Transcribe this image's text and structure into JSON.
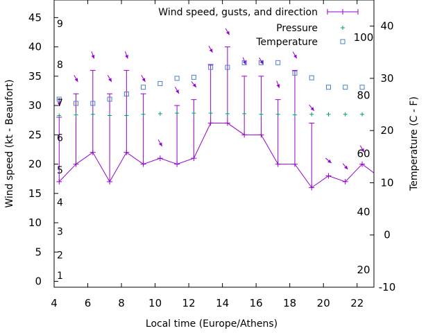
{
  "chart_data": {
    "type": "line",
    "title": "",
    "xlabel": "Local time (Europe/Athens)",
    "ylabel": "Wind speed (kt - Beaufort)",
    "y2label": "Temperature (C - F)",
    "xlim": [
      4,
      23
    ],
    "ylim": [
      -1,
      48
    ],
    "y2lim": [
      -10,
      45
    ],
    "x_ticks": [
      "4",
      "6",
      "8",
      "10",
      "12",
      "14",
      "16",
      "18",
      "20",
      "22"
    ],
    "y_ticks": [
      "0",
      "5",
      "10",
      "15",
      "20",
      "25",
      "30",
      "35",
      "40",
      "45"
    ],
    "y2_ticks": [
      "-10",
      "0",
      "10",
      "20",
      "30",
      "40"
    ],
    "beaufort_labels": [
      {
        "label": "1",
        "kt": 1
      },
      {
        "label": "2",
        "kt": 4.5
      },
      {
        "label": "3",
        "kt": 8.5
      },
      {
        "label": "4",
        "kt": 13.5
      },
      {
        "label": "5",
        "kt": 19
      },
      {
        "label": "6",
        "kt": 24.5
      },
      {
        "label": "7",
        "kt": 30.5
      },
      {
        "label": "8",
        "kt": 37
      },
      {
        "label": "9",
        "kt": 44
      }
    ],
    "fahrenheit_labels": [
      {
        "label": "20",
        "c": -6.7
      },
      {
        "label": "40",
        "c": 4.4
      },
      {
        "label": "60",
        "c": 15.6
      },
      {
        "label": "80",
        "c": 26.7
      },
      {
        "label": "100",
        "c": 37.8
      }
    ],
    "legend": {
      "position": "top-right",
      "entries": [
        "Wind speed, gusts, and direction",
        "Pressure",
        "Temperature"
      ]
    },
    "series": [
      {
        "name": "Wind speed, gusts, and direction",
        "color": "#9400d3",
        "x": [
          4.3,
          5.3,
          6.3,
          7.3,
          8.3,
          9.3,
          10.3,
          11.3,
          12.3,
          13.3,
          14.3,
          15.3,
          16.3,
          17.3,
          18.3,
          19.3,
          20.3,
          21.3,
          22.3,
          23.0
        ],
        "speed": [
          17,
          20,
          22,
          17,
          22,
          20,
          21,
          20,
          21,
          27,
          27,
          25,
          25,
          20,
          20,
          16,
          18,
          17,
          20,
          18.5
        ],
        "gust": [
          28,
          32,
          36,
          32,
          36,
          32,
          21,
          30,
          31,
          37,
          40,
          35,
          35,
          31,
          36,
          27,
          18,
          17,
          20,
          18.5
        ],
        "direction_deg": [
          0,
          330,
          340,
          330,
          340,
          330,
          330,
          330,
          320,
          330,
          330,
          340,
          330,
          340,
          330,
          320,
          310,
          320,
          330,
          330
        ]
      },
      {
        "name": "Pressure",
        "color": "#009e73",
        "x": [
          4.3,
          5.3,
          6.3,
          7.3,
          8.3,
          9.3,
          10.3,
          11.3,
          12.3,
          13.3,
          14.3,
          15.3,
          16.3,
          17.3,
          18.3,
          19.3,
          20.3,
          21.3,
          22.3
        ],
        "kt_level": [
          28.3,
          28.4,
          28.5,
          28.3,
          28.3,
          28.5,
          28.6,
          28.7,
          28.7,
          28.7,
          28.6,
          28.6,
          28.5,
          28.5,
          28.4,
          28.5,
          28.5,
          28.5,
          28.5
        ]
      },
      {
        "name": "Temperature",
        "color": "#4a7fc9",
        "x": [
          4.3,
          5.3,
          6.3,
          7.3,
          8.3,
          9.3,
          10.3,
          11.3,
          12.3,
          13.3,
          14.3,
          15.3,
          16.3,
          17.3,
          18.3,
          19.3,
          20.3,
          21.3,
          22.3
        ],
        "celsius": [
          26,
          25.2,
          25.2,
          26,
          27,
          28.3,
          29,
          30,
          30.2,
          32.1,
          32.1,
          33,
          33,
          33,
          31,
          30.1,
          28.3,
          28.3,
          28.3
        ]
      }
    ]
  }
}
